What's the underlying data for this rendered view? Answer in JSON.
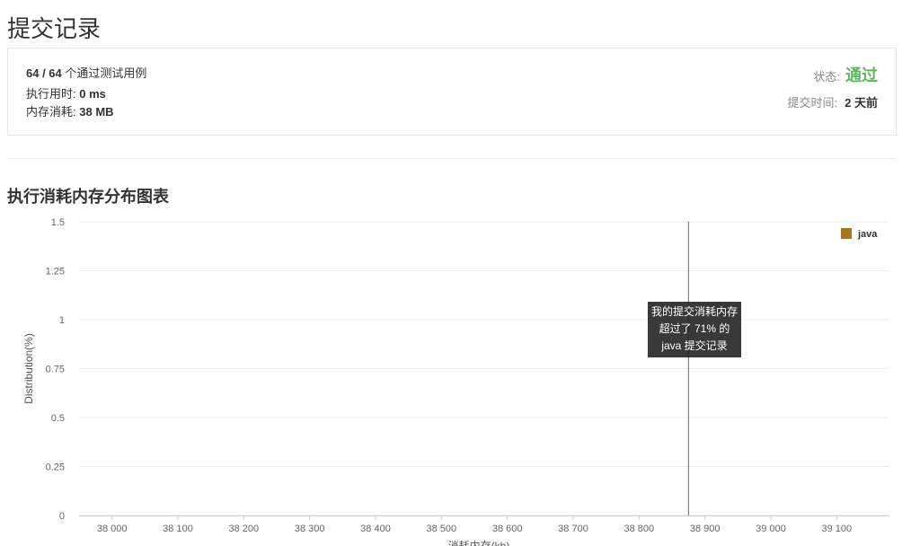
{
  "page_title": "提交记录",
  "summary": {
    "cases_passed": "64 / 64",
    "cases_suffix": "个通过测试用例",
    "runtime_label": "执行用时:",
    "runtime_value": "0 ms",
    "memory_label": "内存消耗:",
    "memory_value": "38 MB",
    "status_label": "状态:",
    "status_value": "通过",
    "status_color": "#5cb85c",
    "submit_time_label": "提交时间:",
    "submit_time_value": "2 天前"
  },
  "section_title": "执行消耗内存分布图表",
  "tooltip": {
    "line1": "我的提交消耗内存",
    "line2": "超过了 71% 的",
    "line3": "java 提交记录"
  },
  "chart_data": {
    "type": "bar",
    "title": "",
    "ylabel": "Distribution(%)",
    "xlabel": "消耗内存(kb)",
    "ylim": [
      0,
      1.5
    ],
    "xlim": [
      37950,
      39180
    ],
    "y_ticks": [
      "0",
      "0.25",
      "0.5",
      "0.75",
      "1",
      "1.25",
      "1.5"
    ],
    "x_ticks": [
      "38 000",
      "38 100",
      "38 200",
      "38 300",
      "38 400",
      "38 500",
      "38 600",
      "38 700",
      "38 800",
      "38 900",
      "39 000",
      "39 100"
    ],
    "grid": true,
    "legend_position": "top-right",
    "marker_x": 38875,
    "series": [
      {
        "name": "java",
        "color": "#a6771d",
        "x_start": 37952,
        "x_step": 4,
        "values": [
          0.0,
          0.0,
          0.0,
          0.0,
          0.0,
          0.0,
          0.0,
          0.0,
          0.0,
          0.0,
          0.0,
          0.0,
          0.0,
          0.0,
          0.0,
          0.0,
          0.0,
          0.0,
          0.0,
          0.0,
          0.0,
          0.0,
          0.0,
          0.0,
          0.0,
          0.0,
          0.0,
          0.0,
          0.0,
          0.0,
          0.0,
          0.0,
          0.0,
          0.0,
          0.0,
          0.0,
          0.0,
          0.0,
          0.0,
          0.0,
          0.0,
          0.0,
          0.0,
          0.0,
          0.0,
          0.0,
          0.0,
          0.0,
          0.0,
          0.0,
          0.0,
          0.0,
          0.0,
          0.0,
          0.0,
          0.0,
          0.0,
          0.0,
          0.0,
          0.0,
          0.0,
          0.0,
          0.0,
          0.0,
          0.0,
          0.0,
          0.0,
          0.0,
          0.0,
          0.0,
          0.0,
          0.0,
          0.0,
          0.0,
          0.0,
          0.0,
          0.0,
          0.0,
          0.0,
          0.0,
          0.0,
          0.0,
          0.0,
          0.0,
          0.0,
          0.0,
          0.0,
          0.0,
          0.0,
          0.0,
          0.0,
          0.0,
          0.0,
          0.0,
          0.0,
          0.0,
          0.0,
          0.0,
          0.0,
          0.0,
          0.0,
          0.0,
          0.0,
          0.0,
          0.0,
          0.0,
          0.0,
          0.0,
          0.0,
          0.0,
          0.0,
          0.0,
          0.0,
          0.0,
          0.0,
          0.0,
          0.0,
          0.0,
          0.0,
          0.0,
          0.0,
          0.0,
          0.0,
          0.0,
          0.0,
          0.0,
          0.0,
          0.0,
          0.0,
          0.0,
          0.0,
          0.0,
          0.0,
          0.0,
          0.0,
          0.0,
          0.0,
          0.0,
          0.0,
          0.0,
          0.0,
          0.0,
          0.0,
          0.0,
          0.0,
          0.0,
          0.0,
          0.0,
          0.0,
          0.0,
          0.0,
          0.0,
          0.0,
          0.0,
          0.0,
          0.0,
          0.0,
          0.0,
          0.0,
          0.0,
          0.0,
          0.0,
          0.0,
          0.0,
          0.0,
          0.0,
          0.0,
          0.0,
          0.0,
          0.0,
          0.0,
          0.0,
          0.0,
          0.0,
          0.0,
          0.0,
          0.0,
          0.0,
          0.0,
          0.0,
          0.0,
          0.0,
          0.0,
          0.0,
          0.0,
          0.0,
          0.0,
          0.0,
          0.0,
          0.0,
          0.0,
          0.0,
          0.0,
          0.0,
          0.0,
          0.0,
          0.0,
          0.0,
          0.0,
          0.0,
          0.0,
          0.0,
          0.0,
          0.0,
          0.0,
          0.0,
          0.0,
          0.0,
          0.0,
          0.0,
          0.0,
          0.0,
          0.0,
          0.0,
          0.0,
          0.0,
          0.0,
          0.0,
          0.0,
          0.0,
          0.0,
          0.0,
          0.0,
          0.0,
          0.0,
          0.0,
          0.0,
          0.0,
          0.0,
          0.0,
          0.0,
          0.0,
          0.0,
          0.0,
          0.0,
          0.0,
          0.0,
          0.0,
          0.0,
          0.0,
          0.0,
          0.0,
          0.0,
          0.0,
          0.0,
          0.0,
          0.0,
          0.0,
          0.0,
          0.0,
          0.0,
          0.0,
          0.0,
          0.0,
          0.0,
          0.0,
          0.0,
          0.0,
          0.0,
          0.0,
          0.0,
          0.0,
          0.0,
          0.0,
          0.0,
          0.0,
          0.0,
          0.0,
          0.0,
          0.0,
          0.0,
          0.0,
          0.0,
          0.0,
          0.0,
          0.0,
          0.0,
          0.0,
          0.0,
          0.0,
          0.0,
          0.0,
          0.0,
          0.0,
          0.0,
          0.0,
          0.0,
          0.0,
          0.0,
          0.0,
          0.0,
          0.0,
          0.0,
          0.0,
          0.0,
          0.0,
          0.0,
          0.0,
          0.0,
          0.0,
          0.0,
          0.0,
          0.0,
          0.0,
          0.0,
          0.0,
          0.0,
          0.0,
          0.0,
          0.0,
          0.0,
          0.0,
          0.0,
          0.0,
          0.0,
          0.0,
          0.0,
          0.0,
          0.0,
          0.0,
          0.0,
          0.0,
          0.0,
          0.0,
          0.0,
          0.0,
          0.0,
          0.0,
          0.0,
          0.0,
          0.0,
          0.0,
          0.0,
          0.0,
          0.0,
          0.0,
          0.0,
          0.0,
          0.0,
          0.0,
          0.0,
          0.0
        ]
      }
    ]
  }
}
